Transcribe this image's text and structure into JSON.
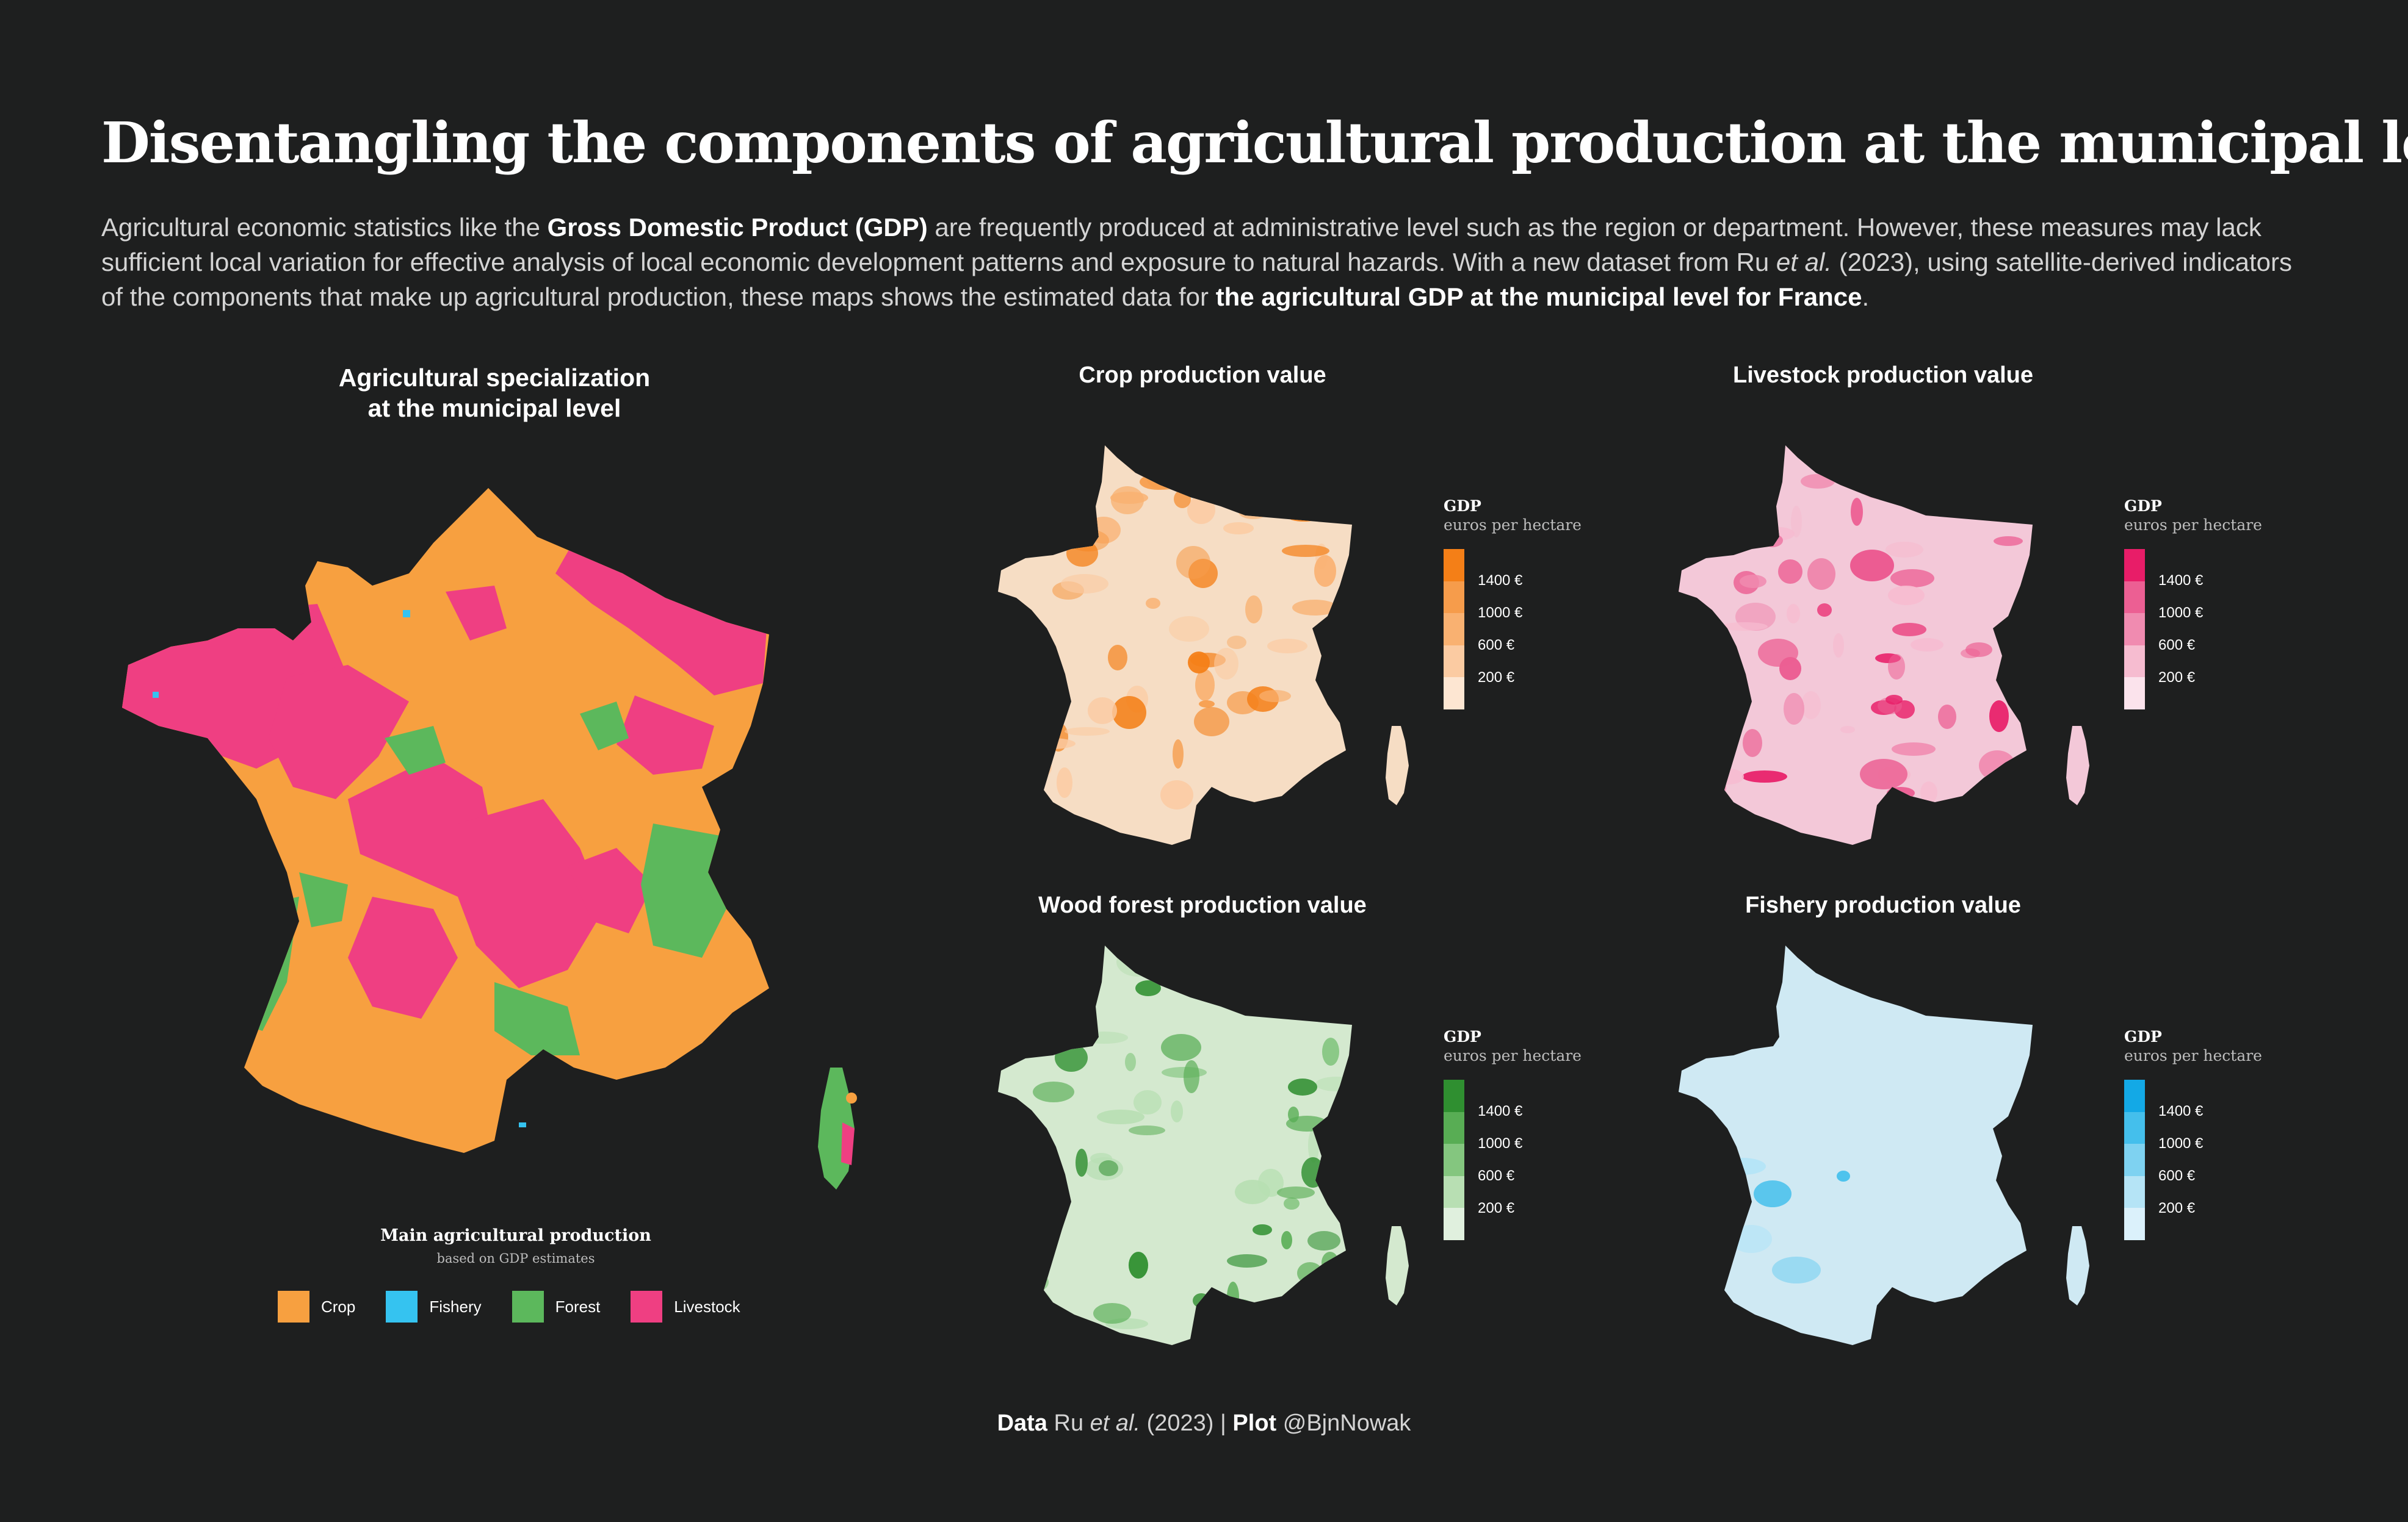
{
  "title": "Disentangling the components of agricultural production at the municipal level",
  "intro": {
    "p1": "Agricultural economic statistics like the ",
    "b1": "Gross Domestic Product (GDP)",
    "p2": " are frequently produced at administrative level such as the region or department. However, these measures may lack sufficient local variation for effective analysis of local economic development patterns and exposure to natural hazards.  With a new dataset from Ru ",
    "i1": "et al.",
    "p3": " (2023), using satellite-derived indicators of the components that make up agricultural production, these maps shows the estimated data for ",
    "b2": "the agricultural GDP at the municipal level for France",
    "p4": "."
  },
  "main_map": {
    "title_line1": "Agricultural specialization",
    "title_line2": "at the municipal level",
    "legend_title": "Main agricultural production",
    "legend_subtitle": "based on GDP estimates",
    "categories": [
      {
        "label": "Crop",
        "color": "#f7a040"
      },
      {
        "label": "Fishery",
        "color": "#35c3f0"
      },
      {
        "label": "Forest",
        "color": "#5cb85c"
      },
      {
        "label": "Livestock",
        "color": "#ef3f82"
      }
    ]
  },
  "small_maps": [
    {
      "title": "Crop production value",
      "legend_title": "GDP",
      "legend_unit": "euros per hectare",
      "ramp": [
        "#fde6d2",
        "#fbcba2",
        "#f9b171",
        "#f69c4b",
        "#f47f17"
      ],
      "base": "#f6ddc4",
      "accent": "#f08a1c"
    },
    {
      "title": "Livestock production value",
      "legend_title": "GDP",
      "legend_unit": "euros per hectare",
      "ramp": [
        "#fbe3ec",
        "#f6bcd0",
        "#f08bb0",
        "#ec5f93",
        "#e81d68"
      ],
      "base": "#f3c8d8",
      "accent": "#e8387a"
    },
    {
      "title": "Wood forest production value",
      "legend_title": "GDP",
      "legend_unit": "euros per hectare",
      "ramp": [
        "#e0f0de",
        "#b8dfb3",
        "#84c67f",
        "#58ad54",
        "#2f8f30"
      ],
      "base": "#d4e9cf",
      "accent": "#3d9b3a"
    },
    {
      "title": "Fishery production value",
      "legend_title": "GDP",
      "legend_unit": "euros per hectare",
      "ramp": [
        "#dbf1fb",
        "#b5e4f6",
        "#7ed2f1",
        "#44bfec",
        "#13a9e6"
      ],
      "base": "#cfe9f3",
      "accent": "#3ab7e8"
    }
  ],
  "ramp_ticks": [
    "1400 €",
    "1000 €",
    "600 €",
    "200 €"
  ],
  "footer": {
    "data_label": "Data",
    "data_text_a": " Ru ",
    "data_text_b": "et al.",
    "data_text_c": " (2023) | ",
    "plot_label": "Plot",
    "plot_text": " @BjnNowak"
  }
}
